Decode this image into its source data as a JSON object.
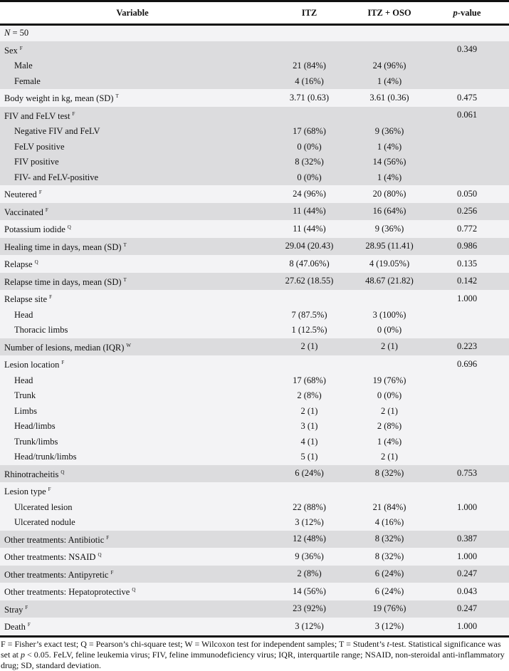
{
  "header": {
    "variable": "Variable",
    "itz": "ITZ",
    "itz_oso": "ITZ + OSO",
    "p_prefix": "p",
    "p_suffix": "-value"
  },
  "n_row": {
    "n": "N",
    "rest": " = 50"
  },
  "rows": [
    {
      "label": "Sex",
      "sup": "F",
      "itz": "",
      "oso": "",
      "p": "0.349",
      "sub": false,
      "shade": "dark"
    },
    {
      "label": "Male",
      "sup": "",
      "itz": "21 (84%)",
      "oso": "24 (96%)",
      "p": "",
      "sub": true,
      "shade": "dark"
    },
    {
      "label": "Female",
      "sup": "",
      "itz": "4 (16%)",
      "oso": "1 (4%)",
      "p": "",
      "sub": true,
      "shade": "dark"
    },
    {
      "label": "Body weight in kg, mean (SD)",
      "sup": "T",
      "itz": "3.71 (0.63)",
      "oso": "3.61 (0.36)",
      "p": "0.475",
      "sub": false,
      "shade": "light"
    },
    {
      "label": "FIV and FeLV test",
      "sup": "F",
      "itz": "",
      "oso": "",
      "p": "0.061",
      "sub": false,
      "shade": "dark"
    },
    {
      "label": "Negative FIV and FeLV",
      "sup": "",
      "itz": "17 (68%)",
      "oso": "9 (36%)",
      "p": "",
      "sub": true,
      "shade": "dark"
    },
    {
      "label": "FeLV positive",
      "sup": "",
      "itz": "0 (0%)",
      "oso": "1 (4%)",
      "p": "",
      "sub": true,
      "shade": "dark"
    },
    {
      "label": "FIV positive",
      "sup": "",
      "itz": "8 (32%)",
      "oso": "14 (56%)",
      "p": "",
      "sub": true,
      "shade": "dark"
    },
    {
      "label": "FIV- and FeLV-positive",
      "sup": "",
      "itz": "0 (0%)",
      "oso": "1 (4%)",
      "p": "",
      "sub": true,
      "shade": "dark"
    },
    {
      "label": "Neutered",
      "sup": "F",
      "itz": "24 (96%)",
      "oso": "20 (80%)",
      "p": "0.050",
      "sub": false,
      "shade": "light"
    },
    {
      "label": "Vaccinated",
      "sup": "F",
      "itz": "11 (44%)",
      "oso": "16 (64%)",
      "p": "0.256",
      "sub": false,
      "shade": "dark"
    },
    {
      "label": "Potassium iodide",
      "sup": "Q",
      "itz": "11 (44%)",
      "oso": "9 (36%)",
      "p": "0.772",
      "sub": false,
      "shade": "light"
    },
    {
      "label": "Healing time in days, mean (SD)",
      "sup": "T",
      "itz": "29.04 (20.43)",
      "oso": "28.95 (11.41)",
      "p": "0.986",
      "sub": false,
      "shade": "dark"
    },
    {
      "label": "Relapse",
      "sup": "Q",
      "itz": "8 (47.06%)",
      "oso": "4 (19.05%)",
      "p": "0.135",
      "sub": false,
      "shade": "light"
    },
    {
      "label": "Relapse time in days, mean (SD)",
      "sup": "T",
      "itz": "27.62 (18.55)",
      "oso": "48.67 (21.82)",
      "p": "0.142",
      "sub": false,
      "shade": "dark"
    },
    {
      "label": "Relapse site",
      "sup": "F",
      "itz": "",
      "oso": "",
      "p": "1.000",
      "sub": false,
      "shade": "light"
    },
    {
      "label": "Head",
      "sup": "",
      "itz": "7 (87.5%)",
      "oso": "3 (100%)",
      "p": "",
      "sub": true,
      "shade": "light"
    },
    {
      "label": "Thoracic limbs",
      "sup": "",
      "itz": "1 (12.5%)",
      "oso": "0 (0%)",
      "p": "",
      "sub": true,
      "shade": "light"
    },
    {
      "label": "Number of lesions, median (IQR)",
      "sup": "W",
      "itz": "2 (1)",
      "oso": "2 (1)",
      "p": "0.223",
      "sub": false,
      "shade": "dark"
    },
    {
      "label": "Lesion location",
      "sup": "F",
      "itz": "",
      "oso": "",
      "p": "0.696",
      "sub": false,
      "shade": "light"
    },
    {
      "label": "Head",
      "sup": "",
      "itz": "17 (68%)",
      "oso": "19 (76%)",
      "p": "",
      "sub": true,
      "shade": "light"
    },
    {
      "label": "Trunk",
      "sup": "",
      "itz": "2 (8%)",
      "oso": "0 (0%)",
      "p": "",
      "sub": true,
      "shade": "light"
    },
    {
      "label": "Limbs",
      "sup": "",
      "itz": "2 (1)",
      "oso": "2 (1)",
      "p": "",
      "sub": true,
      "shade": "light"
    },
    {
      "label": "Head/limbs",
      "sup": "",
      "itz": "3 (1)",
      "oso": "2 (8%)",
      "p": "",
      "sub": true,
      "shade": "light"
    },
    {
      "label": "Trunk/limbs",
      "sup": "",
      "itz": "4 (1)",
      "oso": "1 (4%)",
      "p": "",
      "sub": true,
      "shade": "light"
    },
    {
      "label": "Head/trunk/limbs",
      "sup": "",
      "itz": "5 (1)",
      "oso": "2 (1)",
      "p": "",
      "sub": true,
      "shade": "light"
    },
    {
      "label": "Rhinotracheitis",
      "sup": "Q",
      "itz": "6 (24%)",
      "oso": "8 (32%)",
      "p": "0.753",
      "sub": false,
      "shade": "dark"
    },
    {
      "label": "Lesion type",
      "sup": "F",
      "itz": "",
      "oso": "",
      "p": "",
      "sub": false,
      "shade": "light"
    },
    {
      "label": "Ulcerated lesion",
      "sup": "",
      "itz": "22 (88%)",
      "oso": "21 (84%)",
      "p": "1.000",
      "sub": true,
      "shade": "light"
    },
    {
      "label": "Ulcerated nodule",
      "sup": "",
      "itz": "3 (12%)",
      "oso": "4 (16%)",
      "p": "",
      "sub": true,
      "shade": "light"
    },
    {
      "label": "Other treatments: Antibiotic",
      "sup": "F",
      "itz": "12 (48%)",
      "oso": "8 (32%)",
      "p": "0.387",
      "sub": false,
      "shade": "dark"
    },
    {
      "label": "Other treatments: NSAID",
      "sup": "Q",
      "itz": "9 (36%)",
      "oso": "8 (32%)",
      "p": "1.000",
      "sub": false,
      "shade": "light"
    },
    {
      "label": "Other treatments: Antipyretic",
      "sup": "F",
      "itz": "2 (8%)",
      "oso": "6 (24%)",
      "p": "0.247",
      "sub": false,
      "shade": "dark"
    },
    {
      "label": "Other treatments: Hepatoprotective",
      "sup": "Q",
      "itz": "14 (56%)",
      "oso": "6 (24%)",
      "p": "0.043",
      "sub": false,
      "shade": "light"
    },
    {
      "label": "Stray",
      "sup": "F",
      "itz": "23 (92%)",
      "oso": "19 (76%)",
      "p": "0.247",
      "sub": false,
      "shade": "dark"
    },
    {
      "label": "Death",
      "sup": "F",
      "itz": "3 (12%)",
      "oso": "3 (12%)",
      "p": "1.000",
      "sub": false,
      "shade": "light"
    }
  ],
  "footnote": {
    "a": "F = Fisher’s exact test; Q = Pearson’s chi-square test; W = Wilcoxon test for independent samples; T = Student’s ",
    "t": "t",
    "b": "-test. Statistical significance was set at ",
    "p": "p",
    "c": " < 0.05. FeLV, feline leukemia virus; FIV, feline immunodeficiency virus; IQR, interquartile range; NSAID, non-steroidal anti-inflammatory drug; SD, standard deviation."
  }
}
